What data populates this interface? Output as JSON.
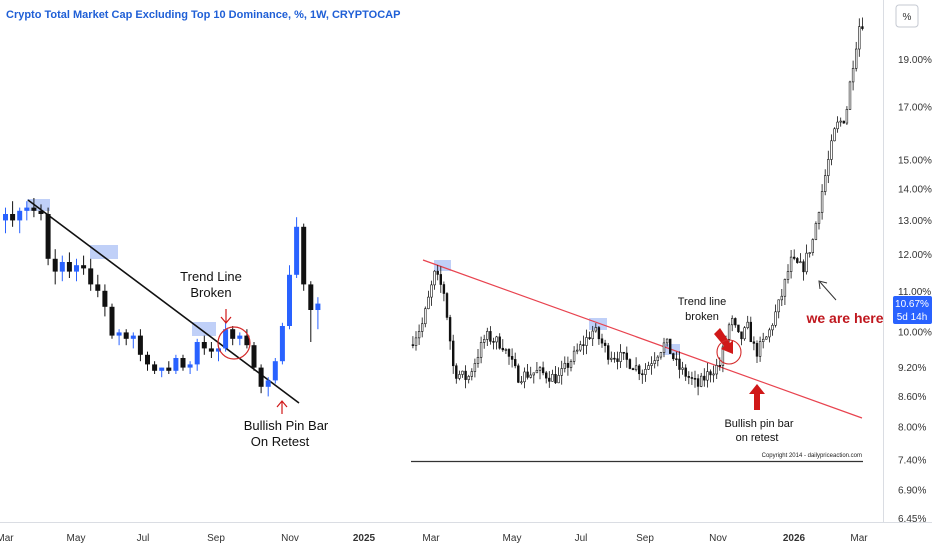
{
  "title": "Crypto Total Market Cap Excluding Top 10 Dominance, %, 1W, CRYPTOCAP",
  "price_axis": {
    "unit_label": "%",
    "ticks": [
      "19.00%",
      "17.00%",
      "15.00%",
      "14.00%",
      "13.00%",
      "12.00%",
      "11.00%",
      "10.00%",
      "9.20%",
      "8.60%",
      "8.00%",
      "7.40%",
      "6.90%",
      "6.45%"
    ],
    "price_badge": "10.67%",
    "countdown_badge": "5d 14h",
    "badge_color": "#2962ff"
  },
  "time_axis": {
    "ticks": [
      "Mar",
      "May",
      "Jul",
      "Sep",
      "Nov",
      "2025",
      "Mar",
      "May",
      "Jul",
      "Sep",
      "Nov",
      "2026",
      "Mar"
    ]
  },
  "annotations": {
    "left_trend_break": [
      "Trend Line",
      "Broken"
    ],
    "left_pin_bar": [
      "Bullish Pin Bar",
      "On Retest"
    ],
    "right_trend_break": [
      "Trend line",
      "broken"
    ],
    "right_pin_bar": [
      "Bullish pin bar",
      "on retest"
    ],
    "we_are_here": "we are here",
    "copyright": "Copyright 2014 - dailypriceaction.com"
  },
  "colors": {
    "bull_left": "#2962ff",
    "bear": "#111111",
    "right_candles": "#111111",
    "touch_zone": "#b9cbf7",
    "left_trendline": "#111111",
    "right_trendline": "#e8434f",
    "circle": "#d42a2a",
    "arrow_red": "#d01818"
  },
  "chart_data": [
    {
      "type": "candlestick",
      "title": "Crypto Total Market Cap Excluding Top 10 Dominance, %, 1W, CRYPTOCAP",
      "timeframe": "1W",
      "x_ticks": [
        "Mar",
        "May",
        "Jul",
        "Sep",
        "Nov",
        "2025"
      ],
      "candles_ohlc": [
        [
          10.9,
          11.1,
          10.7,
          11.0
        ],
        [
          11.0,
          11.2,
          10.8,
          10.9
        ],
        [
          10.9,
          11.1,
          10.7,
          11.05
        ],
        [
          11.05,
          11.2,
          10.9,
          11.1
        ],
        [
          11.1,
          11.25,
          10.95,
          11.05
        ],
        [
          11.05,
          11.15,
          10.9,
          11.0
        ],
        [
          11.0,
          11.1,
          10.2,
          10.3
        ],
        [
          10.3,
          10.45,
          9.9,
          10.1
        ],
        [
          10.1,
          10.35,
          9.95,
          10.25
        ],
        [
          10.25,
          10.4,
          10.0,
          10.1
        ],
        [
          10.1,
          10.3,
          9.95,
          10.2
        ],
        [
          10.2,
          10.35,
          10.05,
          10.15
        ],
        [
          10.15,
          10.3,
          9.8,
          9.9
        ],
        [
          9.9,
          10.05,
          9.7,
          9.8
        ],
        [
          9.8,
          9.9,
          9.4,
          9.55
        ],
        [
          9.55,
          9.6,
          9.05,
          9.1
        ],
        [
          9.1,
          9.2,
          8.95,
          9.15
        ],
        [
          9.15,
          9.2,
          8.95,
          9.05
        ],
        [
          9.05,
          9.15,
          8.9,
          9.1
        ],
        [
          9.1,
          9.2,
          8.7,
          8.8
        ],
        [
          8.8,
          8.85,
          8.55,
          8.65
        ],
        [
          8.65,
          8.7,
          8.5,
          8.55
        ],
        [
          8.55,
          8.6,
          8.45,
          8.6
        ],
        [
          8.6,
          8.7,
          8.5,
          8.55
        ],
        [
          8.55,
          8.8,
          8.5,
          8.75
        ],
        [
          8.75,
          8.8,
          8.55,
          8.6
        ],
        [
          8.6,
          8.7,
          8.5,
          8.65
        ],
        [
          8.65,
          9.05,
          8.55,
          9.0
        ],
        [
          9.0,
          9.1,
          8.8,
          8.9
        ],
        [
          8.9,
          9.0,
          8.75,
          8.85
        ],
        [
          8.85,
          8.95,
          8.7,
          8.9
        ],
        [
          8.9,
          9.3,
          8.85,
          9.2
        ],
        [
          9.2,
          9.25,
          8.95,
          9.05
        ],
        [
          9.05,
          9.15,
          8.95,
          9.1
        ],
        [
          9.1,
          9.2,
          8.9,
          8.95
        ],
        [
          8.95,
          9.0,
          8.55,
          8.6
        ],
        [
          8.6,
          8.65,
          8.2,
          8.3
        ],
        [
          8.3,
          8.45,
          8.15,
          8.4
        ],
        [
          8.4,
          8.75,
          8.35,
          8.7
        ],
        [
          8.7,
          9.3,
          8.65,
          9.25
        ],
        [
          9.25,
          10.2,
          9.2,
          10.05
        ],
        [
          10.05,
          10.95,
          10.0,
          10.8
        ],
        [
          10.8,
          10.85,
          9.8,
          9.9
        ],
        [
          9.9,
          9.95,
          9.0,
          9.5
        ],
        [
          9.5,
          9.7,
          9.2,
          9.6
        ]
      ],
      "trendline": "descending",
      "annotations": [
        "Trend Line",
        "Broken",
        "Bullish Pin Bar",
        "On Retest"
      ]
    },
    {
      "type": "candlestick",
      "title": "Crypto Total Market Cap Excluding Top 10 Dominance, %, 1W, CRYPTOCAP",
      "timeframe": "1W",
      "y_scale": "log",
      "y_ticks": [
        19.0,
        17.0,
        15.0,
        14.0,
        13.0,
        12.0,
        11.0,
        10.0,
        9.2,
        8.6,
        8.0,
        7.4,
        6.9,
        6.45
      ],
      "x_ticks": [
        "Mar",
        "May",
        "Jul",
        "Sep",
        "Nov",
        "2026",
        "Mar"
      ],
      "last_price": 10.67,
      "trendline": "descending",
      "annotations": [
        "Trend line",
        "broken",
        "Bullish pin bar",
        "on retest",
        "we are here"
      ]
    }
  ]
}
